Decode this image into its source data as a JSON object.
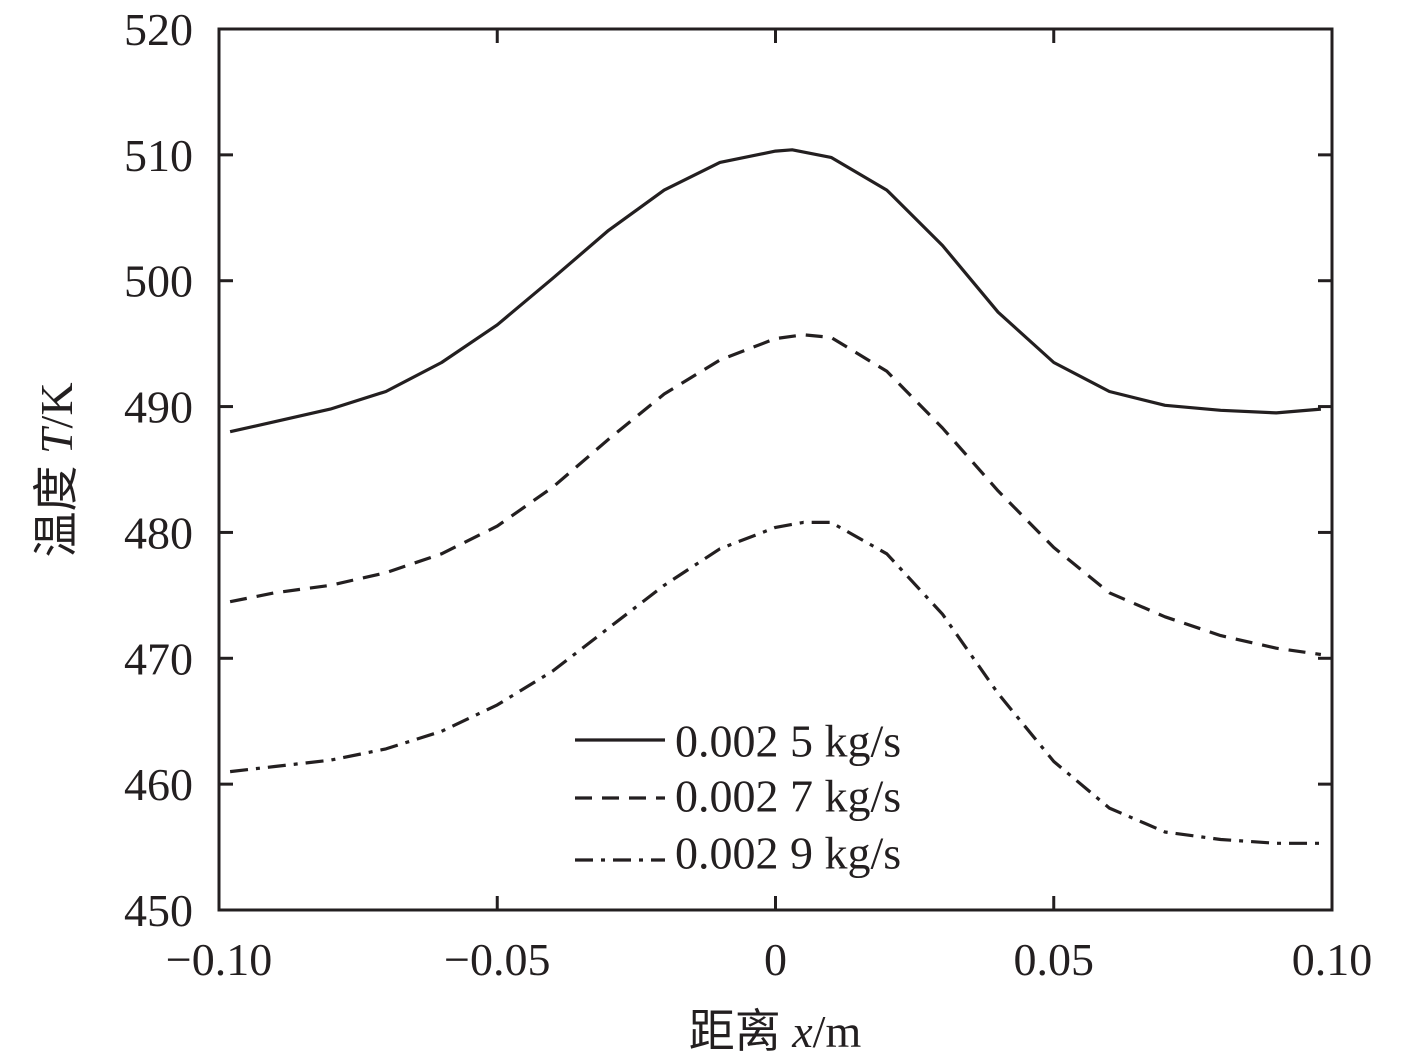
{
  "chart_data": {
    "type": "line",
    "title": "",
    "xlabel_prefix": "距离 ",
    "xlabel_var": "x",
    "xlabel_unit": "/m",
    "ylabel_prefix": "温度 ",
    "ylabel_var": "T",
    "ylabel_unit": "/K",
    "xlim": [
      -0.1,
      0.1
    ],
    "ylim": [
      450,
      520
    ],
    "x_ticks": [
      -0.1,
      -0.05,
      0,
      0.05,
      0.1
    ],
    "x_tick_labels": [
      "−0.10",
      "−0.05",
      "0",
      "0.05",
      "0.10"
    ],
    "y_ticks": [
      450,
      460,
      470,
      480,
      490,
      500,
      510,
      520
    ],
    "y_tick_labels": [
      "450",
      "460",
      "470",
      "480",
      "490",
      "500",
      "510",
      "520"
    ],
    "grid": false,
    "legend_position": "bottom-center",
    "series": [
      {
        "name": "0.002 5 kg/s",
        "style": "solid",
        "x": [
          -0.098,
          -0.09,
          -0.08,
          -0.07,
          -0.06,
          -0.05,
          -0.04,
          -0.03,
          -0.02,
          -0.01,
          0,
          0.003,
          0.01,
          0.02,
          0.03,
          0.04,
          0.05,
          0.06,
          0.07,
          0.08,
          0.09,
          0.098
        ],
        "y": [
          488,
          488.8,
          489.8,
          491.2,
          493.5,
          496.5,
          500.2,
          504,
          507.2,
          509.4,
          510.3,
          510.4,
          509.8,
          507.2,
          502.8,
          497.5,
          493.5,
          491.2,
          490.1,
          489.7,
          489.5,
          489.8
        ]
      },
      {
        "name": "0.002 7 kg/s",
        "style": "dashed",
        "x": [
          -0.098,
          -0.09,
          -0.08,
          -0.07,
          -0.06,
          -0.05,
          -0.04,
          -0.03,
          -0.02,
          -0.01,
          0,
          0.005,
          0.01,
          0.02,
          0.03,
          0.04,
          0.05,
          0.06,
          0.07,
          0.08,
          0.09,
          0.098
        ],
        "y": [
          474.5,
          475.2,
          475.8,
          476.8,
          478.3,
          480.5,
          483.6,
          487.4,
          491,
          493.7,
          495.4,
          495.7,
          495.5,
          492.8,
          488.3,
          483.3,
          478.8,
          475.2,
          473.3,
          471.8,
          470.8,
          470.3
        ]
      },
      {
        "name": "0.002 9 kg/s",
        "style": "dash-dot",
        "x": [
          -0.098,
          -0.09,
          -0.08,
          -0.07,
          -0.06,
          -0.05,
          -0.04,
          -0.03,
          -0.02,
          -0.01,
          0,
          0.005,
          0.01,
          0.02,
          0.03,
          0.04,
          0.05,
          0.06,
          0.07,
          0.08,
          0.09,
          0.098
        ],
        "y": [
          461,
          461.4,
          461.9,
          462.8,
          464.2,
          466.3,
          469,
          472.4,
          475.8,
          478.7,
          480.4,
          480.8,
          480.8,
          478.3,
          473.5,
          467.2,
          461.8,
          458.1,
          456.2,
          455.6,
          455.3,
          455.3
        ]
      }
    ]
  }
}
